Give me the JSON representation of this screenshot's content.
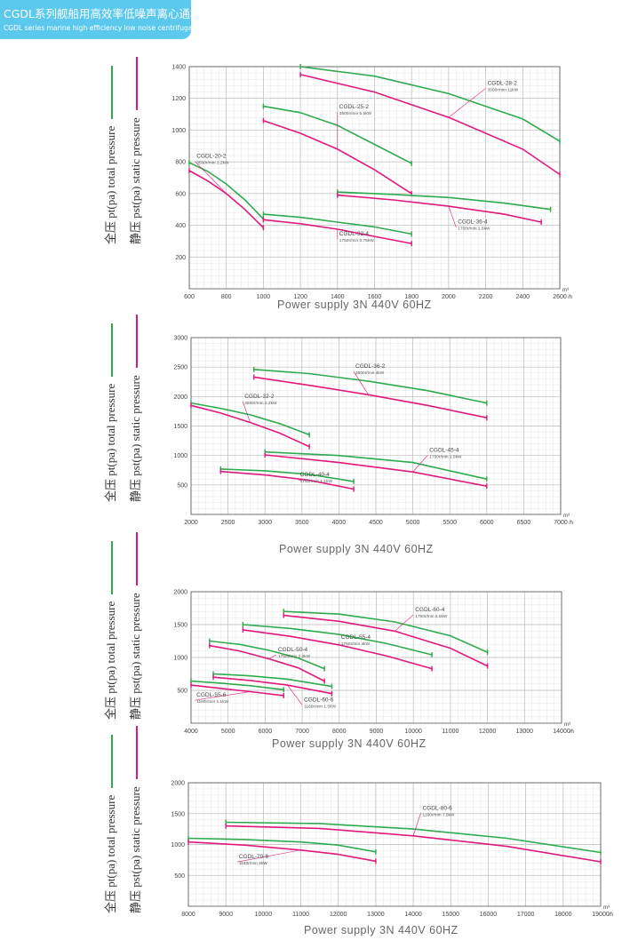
{
  "header": {
    "title_zh": "CGDL系列舰船用高效率低噪声离心通机",
    "title_en": "CGDL series marine high efficiency low noise centrifugal fans"
  },
  "axis_labels": {
    "total": "全压 pt(pa) total pressure",
    "static": "静压 pst(pa) static pressure",
    "supply": "Power supply   3N 440V  60HZ"
  },
  "colors": {
    "total": "#2eab4e",
    "static": "#e0197d",
    "grid": "#cfcfcf",
    "banner": "#5bc8ee"
  },
  "chart_data": [
    {
      "type": "line",
      "x_unit_top": "m³",
      "x_unit_bottom": "/h",
      "xlim": [
        600,
        2600
      ],
      "ylim": [
        0,
        1400
      ],
      "xticks": [
        600,
        800,
        1000,
        1200,
        1400,
        1600,
        1800,
        2000,
        2200,
        2400,
        2600
      ],
      "yticks": [
        200,
        400,
        600,
        800,
        1000,
        1200,
        1400
      ],
      "grid": true,
      "fans": [
        {
          "model": "CGDL-20-2",
          "spec": "3500r/min 2.2kW",
          "label_at": [
            630,
            820
          ],
          "total": {
            "x": [
              600,
              700,
              800,
              900,
              1000
            ],
            "y": [
              795,
              740,
              660,
              560,
              440
            ]
          },
          "static": {
            "x": [
              600,
              700,
              800,
              900,
              1000
            ],
            "y": [
              745,
              680,
              600,
              500,
              385
            ]
          }
        },
        {
          "model": "CGDL-25-2",
          "spec": "3500r/min 5.5kW",
          "label_at": [
            1400,
            1130
          ],
          "total": {
            "x": [
              1000,
              1200,
              1400,
              1600,
              1800
            ],
            "y": [
              1150,
              1110,
              1030,
              910,
              790
            ]
          },
          "static": {
            "x": [
              1000,
              1200,
              1400,
              1600,
              1800
            ],
            "y": [
              1060,
              980,
              880,
              750,
              600
            ]
          }
        },
        {
          "model": "CGDL-28-2",
          "spec": "3500r/min 11kW",
          "label_at": [
            2200,
            1280
          ],
          "total": {
            "x": [
              1200,
              1600,
              2000,
              2400,
              2600
            ],
            "y": [
              1400,
              1340,
              1230,
              1070,
              930
            ]
          },
          "static": {
            "x": [
              1200,
              1600,
              2000,
              2400,
              2600
            ],
            "y": [
              1350,
              1240,
              1080,
              880,
              720
            ]
          }
        },
        {
          "model": "CGDL-32-4",
          "spec": "1750r/min 0.75kW",
          "label_at": [
            1400,
            330
          ],
          "total": {
            "x": [
              1000,
              1200,
              1400,
              1600,
              1800
            ],
            "y": [
              470,
              450,
              420,
              390,
              345
            ]
          },
          "static": {
            "x": [
              1000,
              1200,
              1400,
              1600,
              1800
            ],
            "y": [
              435,
              410,
              375,
              330,
              285
            ]
          }
        },
        {
          "model": "CGDL-36-4",
          "spec": "1750r/min 1.5kW",
          "label_at": [
            2040,
            405
          ],
          "total": {
            "x": [
              1400,
              1700,
              2000,
              2300,
              2550
            ],
            "y": [
              610,
              595,
              575,
              540,
              500
            ]
          },
          "static": {
            "x": [
              1400,
              1700,
              2000,
              2300,
              2500
            ],
            "y": [
              590,
              560,
              520,
              470,
              420
            ]
          }
        }
      ]
    },
    {
      "type": "line",
      "x_unit_top": "m³",
      "x_unit_bottom": "/h",
      "xlim": [
        2000,
        7000
      ],
      "ylim": [
        0,
        3000
      ],
      "xticks": [
        2000,
        2500,
        3000,
        3500,
        4000,
        4500,
        5000,
        5500,
        6000,
        6500,
        7000
      ],
      "yticks": [
        500,
        1000,
        1500,
        2000,
        2500,
        3000
      ],
      "grid": true,
      "fans": [
        {
          "model": "CGDL-32-2",
          "spec": "3500r/min 2.2kW",
          "label_at": [
            2700,
            1960
          ],
          "total": {
            "x": [
              2000,
              2400,
              2800,
              3200,
              3600
            ],
            "y": [
              1890,
              1800,
              1690,
              1540,
              1350
            ]
          },
          "static": {
            "x": [
              2000,
              2400,
              2800,
              3200,
              3600
            ],
            "y": [
              1850,
              1720,
              1560,
              1380,
              1150
            ]
          }
        },
        {
          "model": "CGDL-36-2",
          "spec": "3500r/min 4kW",
          "label_at": [
            4200,
            2470
          ],
          "total": {
            "x": [
              2850,
              3600,
              4400,
              5200,
              6000
            ],
            "y": [
              2460,
              2390,
              2260,
              2100,
              1890
            ]
          },
          "static": {
            "x": [
              2850,
              3600,
              4400,
              5200,
              6000
            ],
            "y": [
              2330,
              2190,
              2030,
              1850,
              1640
            ]
          }
        },
        {
          "model": "CGDL-40-4",
          "spec": "1750r/min 1.1kW",
          "label_at": [
            3450,
            630
          ],
          "total": {
            "x": [
              2400,
              3000,
              3600,
              4200
            ],
            "y": [
              770,
              740,
              680,
              560
            ]
          },
          "static": {
            "x": [
              2400,
              3000,
              3600,
              4200
            ],
            "y": [
              730,
              670,
              580,
              430
            ]
          }
        },
        {
          "model": "CGDL-45-4",
          "spec": "1750r/min 1.5kW",
          "label_at": [
            5200,
            1050
          ],
          "total": {
            "x": [
              3000,
              4000,
              5000,
              6000
            ],
            "y": [
              1060,
              1000,
              880,
              600
            ]
          },
          "static": {
            "x": [
              3000,
              4000,
              5000,
              6000
            ],
            "y": [
              1010,
              880,
              720,
              480
            ]
          }
        }
      ]
    },
    {
      "type": "line",
      "x_unit_top": "m³",
      "x_unit_bottom": "/h",
      "xlim": [
        4000,
        14000
      ],
      "ylim": [
        0,
        2000
      ],
      "xticks": [
        4000,
        5000,
        6000,
        7000,
        8000,
        9000,
        10000,
        11000,
        12000,
        13000,
        14000
      ],
      "yticks": [
        500,
        1000,
        1500,
        2000
      ],
      "grid": true,
      "fans": [
        {
          "model": "CGDL-50-4",
          "spec": "1750r/min 2.2kW",
          "label_at": [
            6300,
            1080
          ],
          "total": {
            "x": [
              4500,
              5300,
              6100,
              6900,
              7600
            ],
            "y": [
              1250,
              1200,
              1110,
              990,
              830
            ]
          },
          "static": {
            "x": [
              4500,
              5300,
              6100,
              6900,
              7600
            ],
            "y": [
              1180,
              1100,
              980,
              840,
              640
            ]
          }
        },
        {
          "model": "CGDL-55-4",
          "spec": "1750r/min 4kW",
          "label_at": [
            8000,
            1270
          ],
          "total": {
            "x": [
              5400,
              6700,
              8000,
              9300,
              10500
            ],
            "y": [
              1500,
              1440,
              1350,
              1210,
              1040
            ]
          },
          "static": {
            "x": [
              5400,
              6700,
              8000,
              9300,
              10500
            ],
            "y": [
              1420,
              1320,
              1190,
              1020,
              830
            ]
          }
        },
        {
          "model": "CGDL-60-4",
          "spec": "1750r/min 5.5kW",
          "label_at": [
            10000,
            1690
          ],
          "total": {
            "x": [
              6500,
              8000,
              9500,
              11000,
              12000
            ],
            "y": [
              1700,
              1660,
              1540,
              1330,
              1080
            ]
          },
          "static": {
            "x": [
              6500,
              8000,
              9500,
              11000,
              12000
            ],
            "y": [
              1640,
              1550,
              1400,
              1140,
              870
            ]
          }
        },
        {
          "model": "CGDL-55-6",
          "spec": "1160r/min 1.1kW",
          "label_at": [
            4100,
            390
          ],
          "total": {
            "x": [
              4000,
              4800,
              5600,
              6500
            ],
            "y": [
              640,
              610,
              570,
              510
            ]
          },
          "static": {
            "x": [
              4000,
              4800,
              5600,
              6500
            ],
            "y": [
              580,
              530,
              480,
              420
            ]
          }
        },
        {
          "model": "CGDL-60-6",
          "spec": "1160r/min 1.5kW",
          "label_at": [
            7000,
            320
          ],
          "total": {
            "x": [
              4600,
              5600,
              6600,
              7800
            ],
            "y": [
              750,
              720,
              670,
              560
            ]
          },
          "static": {
            "x": [
              4600,
              5600,
              6600,
              7800
            ],
            "y": [
              700,
              650,
              580,
              450
            ]
          }
        }
      ]
    },
    {
      "type": "line",
      "x_unit_top": "m³",
      "x_unit_bottom": "/h",
      "xlim": [
        8000,
        19000
      ],
      "ylim": [
        0,
        2000
      ],
      "xticks": [
        8000,
        9000,
        10000,
        11000,
        12000,
        13000,
        14000,
        15000,
        16000,
        17000,
        18000,
        19000
      ],
      "yticks": [
        500,
        1000,
        1500,
        2000
      ],
      "grid": true,
      "fans": [
        {
          "model": "CGDL-70-6",
          "spec": "1160r/min 4kW",
          "label_at": [
            9300,
            760
          ],
          "total": {
            "x": [
              8000,
              9500,
              11000,
              12000,
              13000
            ],
            "y": [
              1100,
              1080,
              1040,
              990,
              880
            ]
          },
          "static": {
            "x": [
              8000,
              9500,
              11000,
              12000,
              13000
            ],
            "y": [
              1040,
              990,
              910,
              840,
              730
            ]
          }
        },
        {
          "model": "CGDL-80-6",
          "spec": "1160r/min 7.5kW",
          "label_at": [
            14200,
            1550
          ],
          "total": {
            "x": [
              9000,
              11500,
              14000,
              16500,
              19000
            ],
            "y": [
              1360,
              1340,
              1250,
              1100,
              870
            ]
          },
          "static": {
            "x": [
              9000,
              11500,
              14000,
              16500,
              19000
            ],
            "y": [
              1300,
              1260,
              1140,
              970,
              720
            ]
          }
        }
      ]
    }
  ]
}
